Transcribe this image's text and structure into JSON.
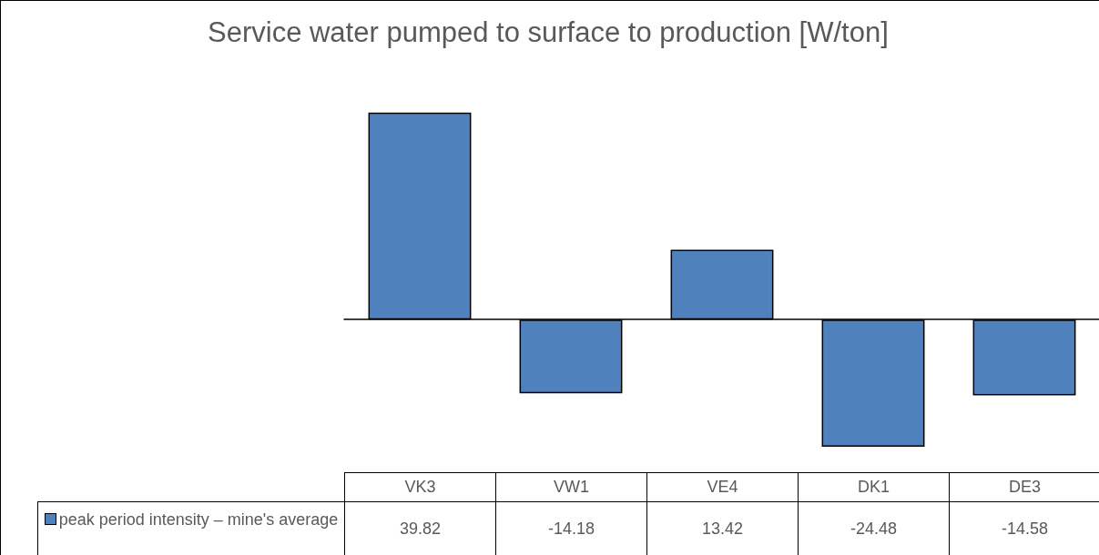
{
  "chart_data": {
    "type": "bar",
    "title": "Service water pumped to surface to production [W/ton]",
    "categories": [
      "VK3",
      "VW1",
      "VE4",
      "DK1",
      "DE3"
    ],
    "series": [
      {
        "name": "peak period intensity – mine's average",
        "color": "#4f81bd",
        "values": [
          39.82,
          -14.18,
          13.42,
          -24.48,
          -14.58
        ]
      }
    ],
    "data_labels": true,
    "legend": "bottom left"
  }
}
